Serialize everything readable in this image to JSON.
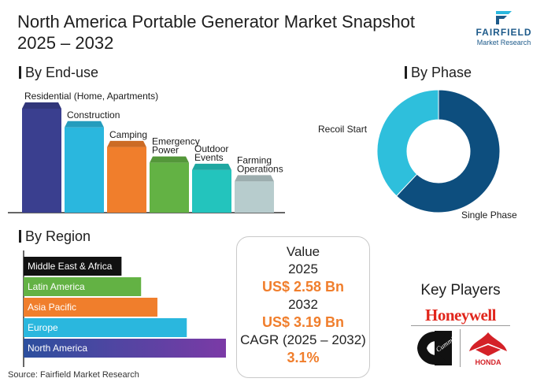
{
  "title": "North America Portable Generator Market Snapshot 2025 – 2032",
  "logo": {
    "brand": "FAIRFIELD",
    "sub": "Market Research"
  },
  "sections": {
    "end_use": "By End-use",
    "phase": "By Phase",
    "region": "By Region"
  },
  "value_box": {
    "heading": "Value",
    "year1": "2025",
    "value1": "US$ 2.58 Bn",
    "year2": "2032",
    "value2": "US$ 3.19 Bn",
    "cagr_label": "CAGR (2025 – 2032)",
    "cagr_value": "3.1%"
  },
  "key_players": {
    "title": "Key Players",
    "players": [
      "Honeywell",
      "Cummins",
      "HONDA"
    ]
  },
  "source": "Source: Fairfield Market Research",
  "chart_data": [
    {
      "type": "bar",
      "id": "end_use",
      "categories": [
        "Residential (Home, Apartments)",
        "Construction",
        "Camping",
        "Emergency Power",
        "Outdoor Events",
        "Farming Operations"
      ],
      "label_lines": [
        [
          "Residential (Home, Apartments)"
        ],
        [
          "Construction"
        ],
        [
          "Camping"
        ],
        [
          "Emergency",
          "Power"
        ],
        [
          "Outdoor",
          "Events"
        ],
        [
          "Farming",
          "Operations"
        ]
      ],
      "values": [
        100,
        82,
        63,
        48,
        41,
        30
      ],
      "colors": [
        "#3a3f8f",
        "#2ab7de",
        "#f07e2c",
        "#63b244",
        "#23c4bd",
        "#b7cccd"
      ]
    },
    {
      "type": "pie",
      "id": "phase",
      "donut": true,
      "categories": [
        "Single Phase",
        "Recoil Start"
      ],
      "values": [
        62,
        38
      ],
      "colors": [
        "#0d4e7e",
        "#2ebfdc"
      ]
    },
    {
      "type": "bar",
      "id": "region",
      "orientation": "horizontal",
      "categories": [
        "Middle East & Africa",
        "Latin America",
        "Asia Pacific",
        "Europe",
        "North America"
      ],
      "values": [
        30,
        36,
        41,
        50,
        62
      ],
      "colors": [
        "#111111",
        "#63b244",
        "#f07e2c",
        "#2ab7de",
        "#3a3f8f"
      ]
    }
  ]
}
